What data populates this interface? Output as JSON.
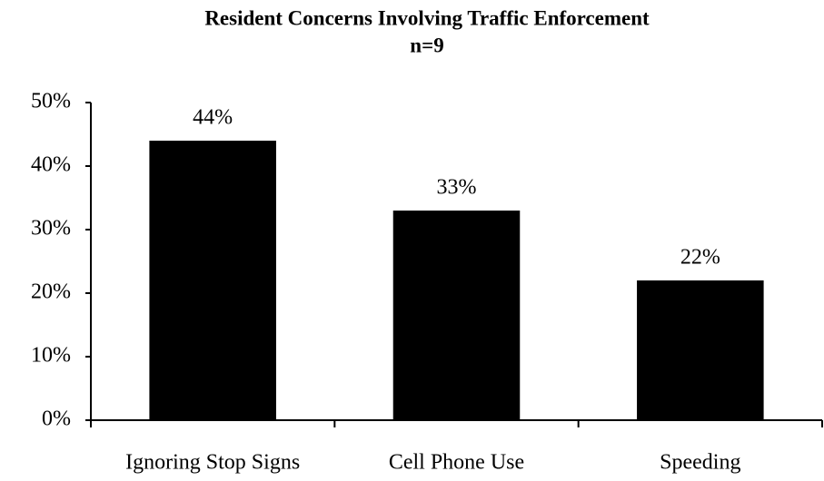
{
  "chart_data": {
    "type": "bar",
    "title": "Resident Concerns Involving Traffic Enforcement",
    "subtitle": "n=9",
    "categories": [
      "Ignoring Stop Signs",
      "Cell Phone Use",
      "Speeding"
    ],
    "values": [
      44,
      33,
      22
    ],
    "value_labels": [
      "44%",
      "33%",
      "22%"
    ],
    "color": "#000000",
    "ylim": [
      0,
      50
    ],
    "yticks": [
      {
        "value": 0,
        "label": "0%"
      },
      {
        "value": 10,
        "label": "10%"
      },
      {
        "value": 20,
        "label": "20%"
      },
      {
        "value": 30,
        "label": "30%"
      },
      {
        "value": 40,
        "label": "40%"
      },
      {
        "value": 50,
        "label": "50%"
      }
    ],
    "grid": false
  }
}
